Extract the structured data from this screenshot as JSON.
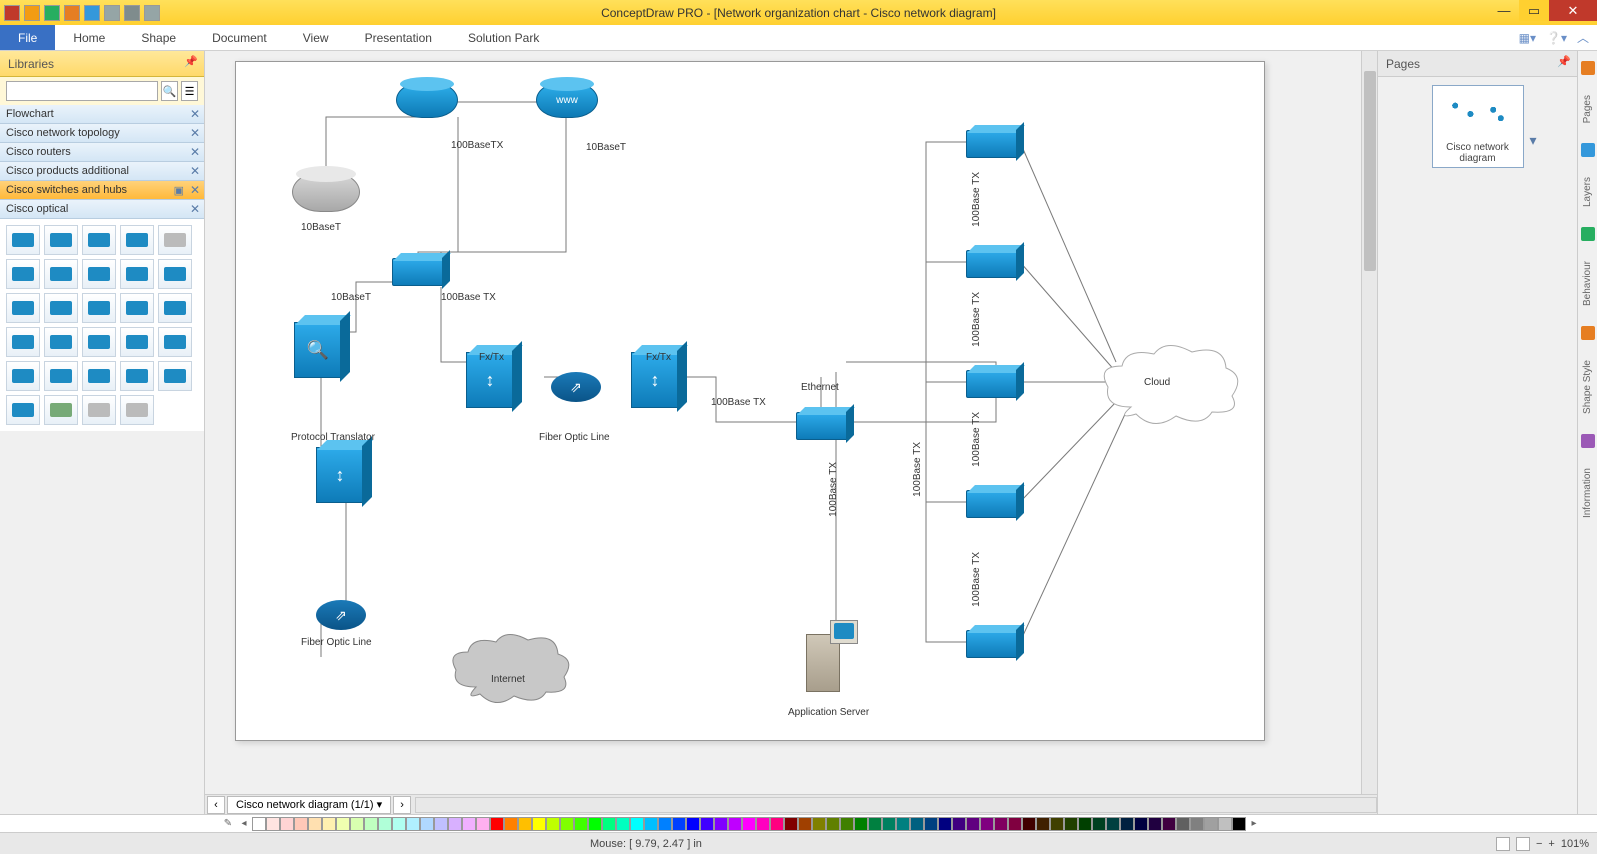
{
  "window": {
    "title": "ConceptDraw PRO - [Network organization chart - Cisco network diagram]"
  },
  "tabs": {
    "file": "File",
    "items": [
      "Home",
      "Shape",
      "Document",
      "View",
      "Presentation",
      "Solution Park"
    ]
  },
  "libraries": {
    "title": "Libraries",
    "search_placeholder": "",
    "items": [
      {
        "label": "Flowchart",
        "sel": false
      },
      {
        "label": "Cisco network topology",
        "sel": false
      },
      {
        "label": "Cisco routers",
        "sel": false
      },
      {
        "label": "Cisco products additional",
        "sel": false
      },
      {
        "label": "Cisco switches and hubs",
        "sel": true
      },
      {
        "label": "Cisco optical",
        "sel": false
      }
    ]
  },
  "pages": {
    "title": "Pages",
    "thumb_caption": "Cisco network diagram"
  },
  "rstrip": [
    "Pages",
    "Layers",
    "Behaviour",
    "Shape Style",
    "Information"
  ],
  "sheet": {
    "tab": "Cisco network diagram (1/1)"
  },
  "status": {
    "mouse": "Mouse: [ 9.79, 2.47 ] in",
    "zoom": "101%"
  },
  "colorbar": [
    "#ffffff",
    "#ffe4e1",
    "#ffd4d4",
    "#ffc8b8",
    "#ffe0b0",
    "#fff0b0",
    "#f0ffb0",
    "#d8ffb0",
    "#c0ffc0",
    "#b0ffd8",
    "#b0fff0",
    "#b0f0ff",
    "#b0d8ff",
    "#c0c0ff",
    "#d8b0ff",
    "#f0b0ff",
    "#ffb0f0",
    "#ff0000",
    "#ff8000",
    "#ffbf00",
    "#ffff00",
    "#bfff00",
    "#80ff00",
    "#40ff00",
    "#00ff00",
    "#00ff80",
    "#00ffbf",
    "#00ffff",
    "#00bfff",
    "#0080ff",
    "#0040ff",
    "#0000ff",
    "#4000ff",
    "#8000ff",
    "#bf00ff",
    "#ff00ff",
    "#ff00bf",
    "#ff0080",
    "#800000",
    "#a04000",
    "#808000",
    "#608000",
    "#408000",
    "#008000",
    "#008040",
    "#008060",
    "#008080",
    "#006080",
    "#004080",
    "#000080",
    "#400080",
    "#600080",
    "#800080",
    "#800060",
    "#800040",
    "#400000",
    "#402000",
    "#404000",
    "#204000",
    "#004000",
    "#004020",
    "#004040",
    "#002040",
    "#000040",
    "#200040",
    "#400040",
    "#606060",
    "#808080",
    "#a0a0a0",
    "#c0c0c0",
    "#000000"
  ],
  "diagram": {
    "labels": {
      "l_100basetx_top": "100BaseTX",
      "l_10baset_top": "10BaseT",
      "l_10baset_left": "10BaseT",
      "l_10baset_left2": "10BaseT",
      "l_100basetx_mid": "100Base TX",
      "l_fxtx1": "Fx/Tx",
      "l_fxtx2": "Fx/Tx",
      "l_fiber1": "Fiber Optic Line",
      "l_fiber2": "Fiber Optic Line",
      "l_protocol": "Protocol Translator",
      "l_ethernet": "Ethernet",
      "l_100basetx_h": "100Base TX",
      "l_100basetx_v1": "100Base TX",
      "l_100basetx_v2": "100Base TX",
      "l_100basetx_v3": "100Base TX",
      "l_100basetx_v4": "100Base TX",
      "l_100basetx_v5": "100Base TX",
      "l_100basetx_v6": "100Base TX",
      "l_cloud": "Cloud",
      "l_internet": "Internet",
      "l_appsrv": "Application Server"
    }
  }
}
